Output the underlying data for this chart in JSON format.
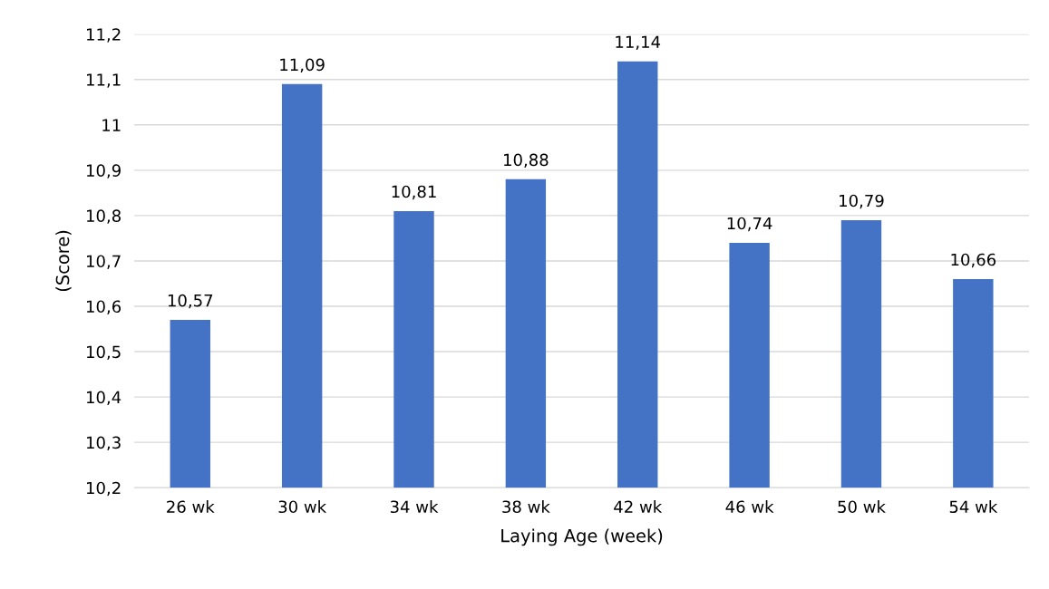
{
  "chart_data": {
    "type": "bar",
    "xlabel": "Laying Age (week)",
    "ylabel": "(Score)",
    "categories": [
      "26 wk",
      "30 wk",
      "34 wk",
      "38 wk",
      "42 wk",
      "46 wk",
      "50 wk",
      "54 wk"
    ],
    "values": [
      10.57,
      11.09,
      10.81,
      10.88,
      11.14,
      10.74,
      10.79,
      10.66
    ],
    "value_labels": [
      "10,57",
      "11,09",
      "10,81",
      "10,88",
      "11,14",
      "10,74",
      "10,79",
      "10,66"
    ],
    "color": "#4472c4",
    "ylim": [
      10.2,
      11.2
    ],
    "yticks": [
      {
        "value": 10.2,
        "label": "10,2"
      },
      {
        "value": 10.3,
        "label": "10,3"
      },
      {
        "value": 10.4,
        "label": "10,4"
      },
      {
        "value": 10.5,
        "label": "10,5"
      },
      {
        "value": 10.6,
        "label": "10,6"
      },
      {
        "value": 10.7,
        "label": "10,7"
      },
      {
        "value": 10.8,
        "label": "10,8"
      },
      {
        "value": 10.9,
        "label": "10,9"
      },
      11,
      {
        "value": 11.1,
        "label": "11,1"
      },
      {
        "value": 11.2,
        "label": "11,2"
      }
    ],
    "grid": "y"
  }
}
